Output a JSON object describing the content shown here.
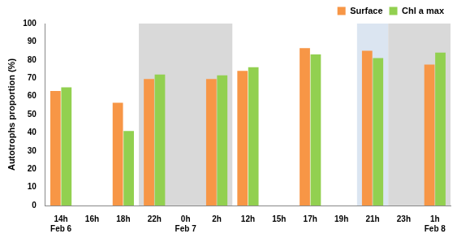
{
  "chart_data": {
    "type": "bar",
    "y_label": "Autotrophs proportion (%)",
    "categories": [
      "14h",
      "16h",
      "18h",
      "22h",
      "0h",
      "2h",
      "12h",
      "15h",
      "17h",
      "19h",
      "21h",
      "23h",
      "1h"
    ],
    "x_groups": [
      "Feb 6",
      null,
      null,
      null,
      "Feb 7",
      null,
      null,
      null,
      null,
      null,
      null,
      null,
      "Feb 8"
    ],
    "series": [
      {
        "name": "Surface",
        "color": "#f79646",
        "values": [
          63,
          null,
          56.5,
          69.5,
          null,
          69.5,
          74,
          null,
          86.5,
          null,
          85,
          null,
          77.5
        ]
      },
      {
        "name": "Chl a max",
        "color": "#92d050",
        "values": [
          65,
          null,
          41,
          72,
          null,
          71.5,
          76,
          null,
          83,
          null,
          81,
          null,
          84
        ]
      }
    ],
    "bands": [
      {
        "from": "22h",
        "to": "2h",
        "color": "#d9d9d9"
      },
      {
        "from": "21h",
        "to": "21h",
        "color": "#dbe5f1"
      },
      {
        "from": "23h",
        "to": "1h",
        "color": "#d9d9d9"
      }
    ],
    "ylim": [
      0,
      100
    ],
    "yticks": [
      0,
      10,
      20,
      30,
      40,
      50,
      60,
      70,
      80,
      90,
      100
    ],
    "grid": false,
    "legend": "top-right"
  }
}
